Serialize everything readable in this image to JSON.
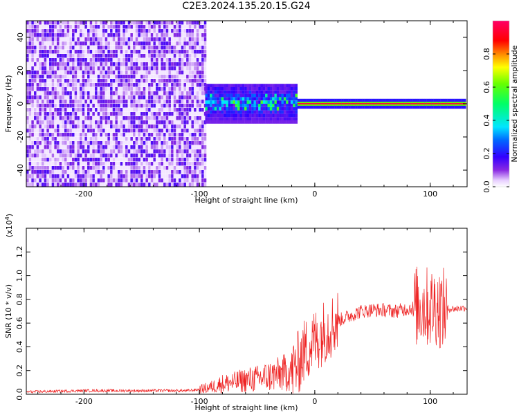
{
  "title": "C2E3.2024.135.20.15.G24",
  "colors": {
    "snr_line": "#ee2222",
    "axes": "#000000",
    "background": "#ffffff"
  },
  "chart_data": [
    {
      "type": "heatmap",
      "xlabel": "Height of straight line (km)",
      "ylabel": "Frequency (Hz)",
      "xlim": [
        -250,
        132
      ],
      "ylim": [
        -50,
        50
      ],
      "xticks": [
        -200,
        -100,
        0,
        100
      ],
      "yticks": [
        -40,
        -20,
        0,
        20,
        40
      ],
      "colorbar": {
        "label": "Normalized spectral amplitude",
        "range": [
          0.0,
          1.0
        ],
        "ticks": [
          0.0,
          0.2,
          0.4,
          0.6,
          0.8
        ],
        "tick_labels": [
          "0.0",
          "0.2",
          "0.4",
          "0.6",
          "0.8"
        ],
        "colormap": "rainbow (white-violet-blue-cyan-green-yellow-red-magenta)"
      },
      "regions": [
        {
          "x_range": [
            -250,
            -95
          ],
          "freq_range": [
            -50,
            50
          ],
          "amplitude": 0.05,
          "description": "broadband noise"
        },
        {
          "x_range": [
            -95,
            -15
          ],
          "freq_range": [
            -12,
            12
          ],
          "amplitude": 0.35,
          "description": "scattered mid-amplitude"
        },
        {
          "x_range": [
            -15,
            130
          ],
          "freq_range": [
            -2,
            2
          ],
          "amplitude": 0.95,
          "description": "narrow carrier line at 0 Hz"
        }
      ]
    },
    {
      "type": "line",
      "xlabel": "Height of straight line (km)",
      "ylabel": "SNR (10 * v/v)",
      "multiplier_label": "(x10",
      "multiplier_exp": "4",
      "multiplier_close": ")",
      "xlim": [
        -250,
        132
      ],
      "ylim": [
        0.0,
        1.4
      ],
      "xticks": [
        -200,
        -100,
        0,
        100
      ],
      "yticks": [
        0.0,
        0.2,
        0.4,
        0.6,
        0.8,
        1.0,
        1.2
      ],
      "ytick_labels": [
        "0.0",
        "0.2",
        "0.4",
        "0.6",
        "0.8",
        "1.0",
        "1.2"
      ],
      "series": [
        {
          "x": [
            -250,
            -200,
            -150,
            -110,
            -100,
            -90,
            -80,
            -70,
            -60,
            -50,
            -40,
            -30,
            -20,
            -15,
            -10,
            -5,
            0,
            5,
            10,
            15,
            20,
            30,
            40,
            50,
            60,
            70,
            80,
            85,
            90,
            95,
            100,
            105,
            110,
            115,
            120,
            132
          ],
          "y": [
            0.02,
            0.03,
            0.03,
            0.03,
            0.04,
            0.06,
            0.09,
            0.1,
            0.12,
            0.13,
            0.15,
            0.17,
            0.2,
            0.25,
            0.35,
            0.4,
            0.45,
            0.5,
            0.55,
            0.58,
            0.62,
            0.66,
            0.7,
            0.71,
            0.71,
            0.7,
            0.72,
            0.73,
            0.75,
            0.74,
            0.73,
            0.75,
            0.72,
            0.72,
            0.72,
            0.73
          ]
        }
      ]
    }
  ]
}
